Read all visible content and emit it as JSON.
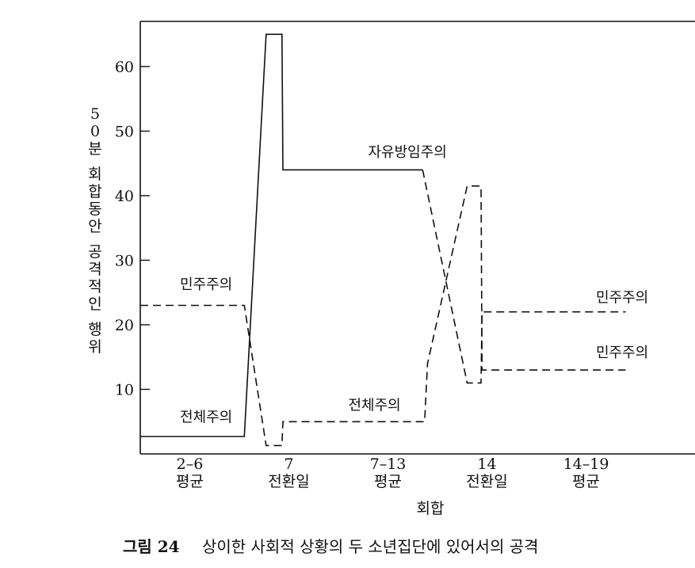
{
  "chart_data": {
    "type": "line",
    "title": "",
    "caption_number": "그림 24",
    "caption_text": "상이한 사회적 상황의 두 소년집단에 있어서의 공격",
    "ylabel": "50분 회합동안 공격적인 행위",
    "xlabel": "회합",
    "ylim": [
      0,
      66
    ],
    "yticks": [
      {
        "value": 10,
        "label": "10"
      },
      {
        "value": 20,
        "label": "20"
      },
      {
        "value": 30,
        "label": "30"
      },
      {
        "value": 40,
        "label": "40"
      },
      {
        "value": 50,
        "label": "50"
      },
      {
        "value": 60,
        "label": "60"
      }
    ],
    "xticks": [
      {
        "pos": 0.5,
        "line1": "2–6",
        "line2": "평균"
      },
      {
        "pos": 1.5,
        "line1": "7",
        "line2": "전환일"
      },
      {
        "pos": 2.5,
        "line1": "7–13",
        "line2": "평균"
      },
      {
        "pos": 3.5,
        "line1": "14",
        "line2": "전환일"
      },
      {
        "pos": 4.5,
        "line1": "14–19",
        "line2": "평균"
      }
    ],
    "series": [
      {
        "style": "solid",
        "points": [
          [
            0.0,
            2.7
          ],
          [
            1.05,
            2.7
          ],
          [
            1.27,
            65.0
          ],
          [
            1.43,
            65.0
          ],
          [
            1.44,
            44.0
          ],
          [
            2.85,
            44.0
          ]
        ]
      },
      {
        "style": "dashed",
        "points": [
          [
            0.0,
            23.0
          ],
          [
            1.05,
            23.0
          ],
          [
            1.27,
            1.3
          ],
          [
            1.43,
            1.3
          ],
          [
            1.44,
            5.0
          ],
          [
            2.87,
            5.0
          ],
          [
            2.9,
            14.0
          ],
          [
            3.3,
            41.5
          ],
          [
            3.44,
            41.5
          ],
          [
            3.45,
            13.0
          ],
          [
            4.9,
            13.0
          ]
        ]
      },
      {
        "style": "dashed",
        "points": [
          [
            2.85,
            44.0
          ],
          [
            3.3,
            11.0
          ],
          [
            3.44,
            11.0
          ],
          [
            3.45,
            22.0
          ],
          [
            4.9,
            22.0
          ]
        ]
      }
    ],
    "annotations": [
      {
        "text": "자유방임주의",
        "x": 2.3,
        "y": 46.0
      },
      {
        "text": "민주주의",
        "x": 0.4,
        "y": 25.5
      },
      {
        "text": "전체주의",
        "x": 0.4,
        "y": 5.0
      },
      {
        "text": "전체주의",
        "x": 2.1,
        "y": 6.8
      },
      {
        "text": "민주주의",
        "x": 4.6,
        "y": 23.5
      },
      {
        "text": "민주주의",
        "x": 4.6,
        "y": 15.0
      }
    ]
  }
}
